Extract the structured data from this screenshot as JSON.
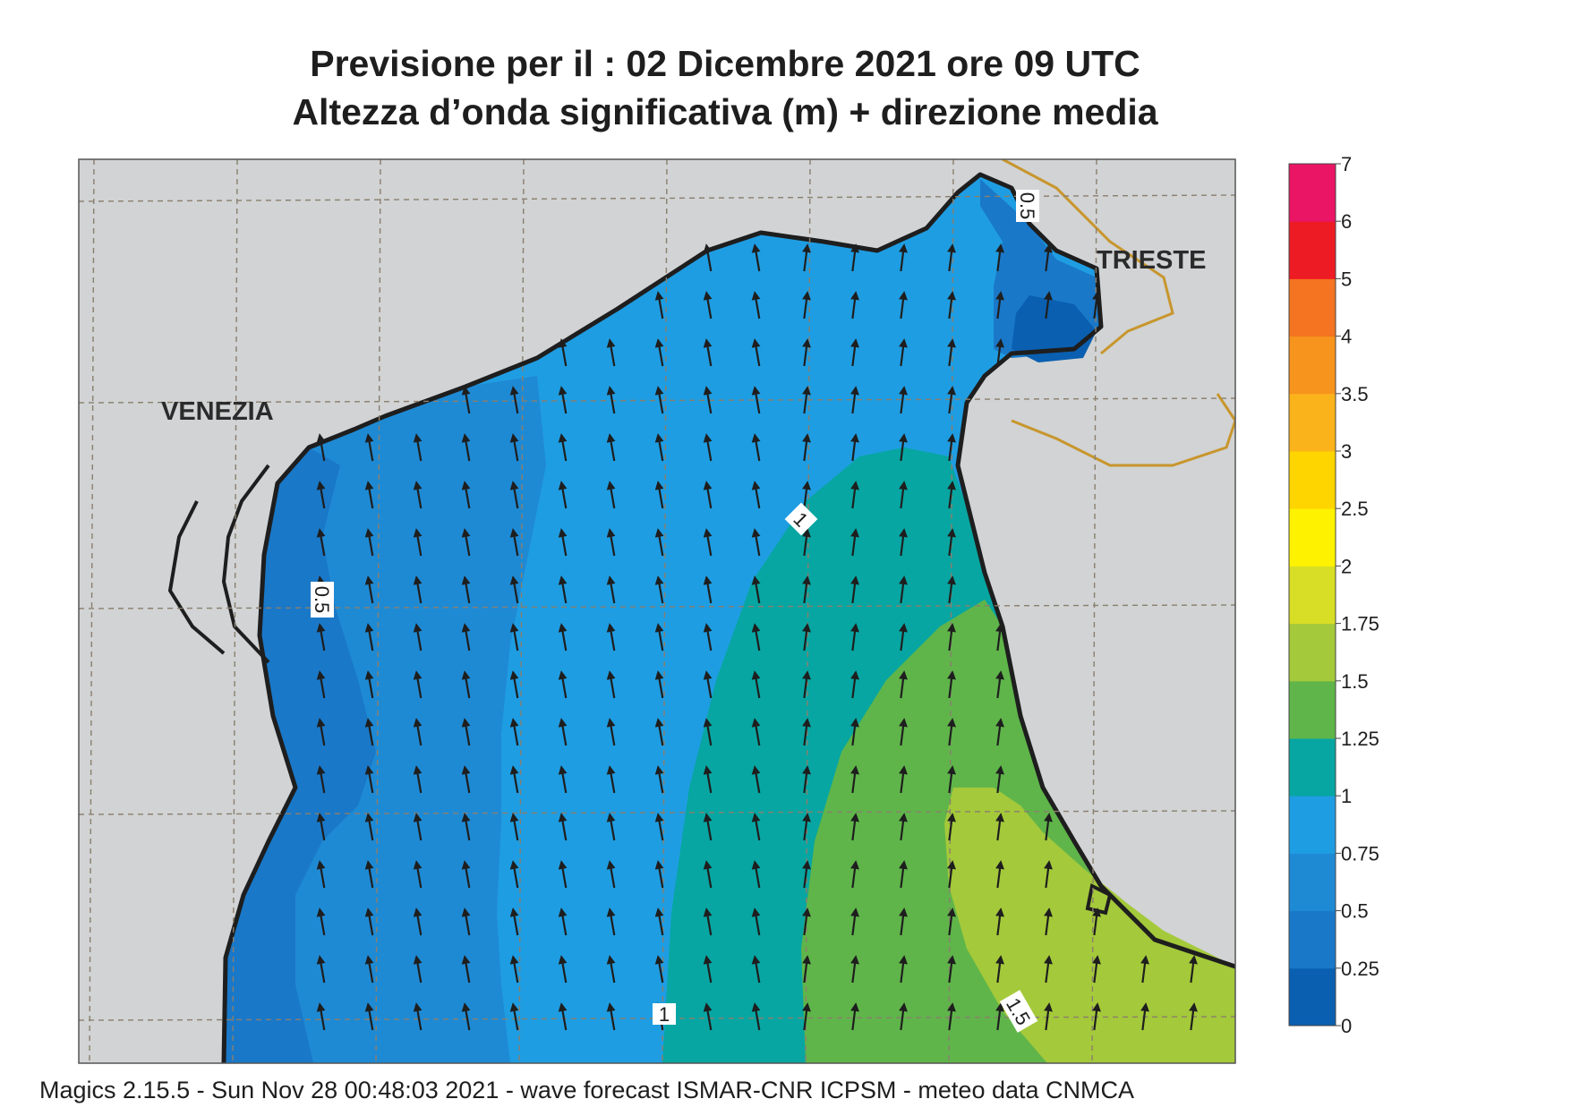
{
  "title_line_1": "Previsione per il  :  02 Dicembre  2021   ore 09 UTC",
  "title_line_2": "Altezza d’onda significativa (m) + direzione media",
  "places": [
    {
      "name": "VENEZIA"
    },
    {
      "name": "TRIESTE"
    }
  ],
  "contour_labels": [
    "0.5",
    "0.5",
    "1",
    "1",
    "1.5"
  ],
  "colorbar": {
    "ticks": [
      "0",
      "0.25",
      "0.5",
      "0.75",
      "1",
      "1.25",
      "1.5",
      "1.75",
      "2",
      "2.5",
      "3",
      "3.5",
      "4",
      "5",
      "6",
      "7"
    ],
    "colors": [
      "#0a5fb0",
      "#1a78c8",
      "#1f8ad4",
      "#1f9de2",
      "#07a6a2",
      "#5fb54a",
      "#a4c93a",
      "#d8de25",
      "#fff200",
      "#ffd500",
      "#fbb31b",
      "#f7941d",
      "#f47421",
      "#ed1c24",
      "#ea1564"
    ]
  },
  "footer": "Magics 2.15.5 - Sun Nov 28 00:48:03 2021 - wave forecast  ISMAR-CNR  ICPSM - meteo data   CNMCA"
}
